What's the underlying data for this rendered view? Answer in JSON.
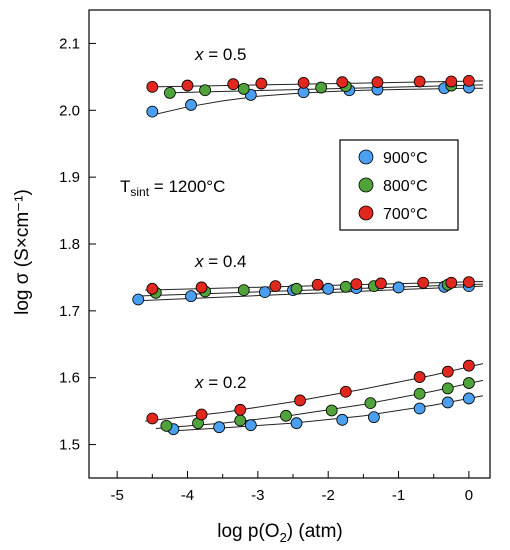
{
  "chart_data": {
    "type": "scatter",
    "xlabel_main": "log p(O",
    "xlabel_sub": "2",
    "xlabel_tail": ") (atm)",
    "ylabel": "log σ (S×cm⁻¹)",
    "xlim": [
      -5.4,
      0.3
    ],
    "ylim": [
      1.45,
      2.15
    ],
    "x_ticks": [
      -5,
      -4,
      -3,
      -2,
      -1,
      0
    ],
    "y_ticks": [
      1.5,
      1.6,
      1.7,
      1.8,
      1.9,
      2.0,
      2.1
    ],
    "x_tick_labels": [
      "-5",
      "-4",
      "-3",
      "-2",
      "-1",
      "0"
    ],
    "y_tick_labels": [
      "1.5",
      "1.6",
      "1.7",
      "1.8",
      "1.9",
      "2.0",
      "2.1"
    ],
    "legend_position": "right",
    "annotations": {
      "x05": {
        "prefix": "x",
        "rest": " = 0.5"
      },
      "x04": {
        "prefix": "x",
        "rest": " = 0.4"
      },
      "x02": {
        "prefix": "x",
        "rest": " = 0.2"
      },
      "tsint": {
        "main": "T",
        "sub": "sint",
        "rest": " = 1200°C"
      }
    },
    "series": [
      {
        "name": "900°C",
        "color": "#4a9ff0",
        "group": "x05",
        "x": [
          -4.5,
          -3.95,
          -3.1,
          -2.35,
          -1.7,
          -1.3,
          -0.35,
          -0.0
        ],
        "y": [
          1.998,
          2.008,
          2.023,
          2.027,
          2.03,
          2.031,
          2.033,
          2.034
        ]
      },
      {
        "name": "800°C",
        "color": "#4fa33a",
        "group": "x05",
        "x": [
          -4.25,
          -3.75,
          -3.2,
          -2.1,
          -1.75,
          -0.25
        ],
        "y": [
          2.026,
          2.03,
          2.032,
          2.034,
          2.036,
          2.037
        ]
      },
      {
        "name": "700°C",
        "color": "#e0281e",
        "group": "x05",
        "x": [
          -4.5,
          -4.0,
          -3.35,
          -2.95,
          -2.35,
          -1.8,
          -1.3,
          -0.7,
          -0.25,
          0.0
        ],
        "y": [
          2.035,
          2.037,
          2.039,
          2.04,
          2.041,
          2.042,
          2.042,
          2.043,
          2.043,
          2.044
        ]
      },
      {
        "name": "900°C",
        "color": "#4a9ff0",
        "group": "x04",
        "x": [
          -4.7,
          -3.95,
          -2.9,
          -2.5,
          -2.0,
          -1.6,
          -1.0,
          -0.35,
          0.0
        ],
        "y": [
          1.717,
          1.722,
          1.728,
          1.731,
          1.733,
          1.734,
          1.735,
          1.736,
          1.737
        ]
      },
      {
        "name": "800°C",
        "color": "#4fa33a",
        "group": "x04",
        "x": [
          -4.45,
          -3.75,
          -3.2,
          -2.45,
          -1.75,
          -1.35,
          -0.3
        ],
        "y": [
          1.727,
          1.729,
          1.731,
          1.733,
          1.736,
          1.737,
          1.739
        ]
      },
      {
        "name": "700°C",
        "color": "#e0281e",
        "group": "x04",
        "x": [
          -4.5,
          -3.8,
          -2.75,
          -2.15,
          -1.6,
          -1.25,
          -0.65,
          -0.25,
          0.0
        ],
        "y": [
          1.733,
          1.735,
          1.737,
          1.739,
          1.74,
          1.741,
          1.742,
          1.742,
          1.743
        ]
      },
      {
        "name": "900°C",
        "color": "#4a9ff0",
        "group": "x02",
        "x": [
          -4.2,
          -3.55,
          -3.1,
          -2.45,
          -1.8,
          -1.35,
          -0.7,
          -0.3,
          0.0
        ],
        "y": [
          1.523,
          1.526,
          1.529,
          1.532,
          1.537,
          1.541,
          1.554,
          1.563,
          1.569
        ]
      },
      {
        "name": "800°C",
        "color": "#4fa33a",
        "group": "x02",
        "x": [
          -4.3,
          -3.85,
          -3.25,
          -2.6,
          -1.95,
          -1.4,
          -0.7,
          -0.3,
          0.0
        ],
        "y": [
          1.528,
          1.532,
          1.536,
          1.543,
          1.551,
          1.562,
          1.576,
          1.584,
          1.592
        ]
      },
      {
        "name": "700°C",
        "color": "#e0281e",
        "group": "x02",
        "x": [
          -4.5,
          -3.8,
          -3.25,
          -2.4,
          -1.75,
          -0.7,
          -0.3,
          0.0
        ],
        "y": [
          1.539,
          1.545,
          1.552,
          1.566,
          1.579,
          1.601,
          1.609,
          1.618
        ]
      }
    ],
    "fit_lines": [
      {
        "x": [
          -4.5,
          -4.0,
          -3.5,
          -3.0,
          -2.5,
          -2.0,
          -1.5,
          -1.0,
          -0.5,
          0.0,
          0.2
        ],
        "y": [
          1.993,
          2.005,
          2.014,
          2.021,
          2.025,
          2.028,
          2.03,
          2.031,
          2.032,
          2.033,
          2.033
        ]
      },
      {
        "x": [
          -4.3,
          0.2
        ],
        "y": [
          2.026,
          2.038
        ]
      },
      {
        "x": [
          -4.5,
          0.2
        ],
        "y": [
          2.035,
          2.044
        ]
      },
      {
        "x": [
          -4.75,
          0.2
        ],
        "y": [
          1.715,
          1.737
        ]
      },
      {
        "x": [
          -4.75,
          0.2
        ],
        "y": [
          1.722,
          1.74
        ]
      },
      {
        "x": [
          -4.6,
          0.2
        ],
        "y": [
          1.731,
          1.744
        ]
      },
      {
        "x": [
          -4.3,
          -3.5,
          -2.5,
          -1.5,
          -0.5,
          0.2
        ],
        "y": [
          1.52,
          1.525,
          1.532,
          1.543,
          1.559,
          1.573
        ]
      },
      {
        "x": [
          -4.45,
          -3.5,
          -2.5,
          -1.5,
          -0.5,
          0.2
        ],
        "y": [
          1.524,
          1.532,
          1.544,
          1.56,
          1.58,
          1.596
        ]
      },
      {
        "x": [
          -4.6,
          -3.5,
          -2.5,
          -1.5,
          -0.5,
          0.2
        ],
        "y": [
          1.535,
          1.548,
          1.564,
          1.583,
          1.604,
          1.621
        ]
      }
    ],
    "legend": [
      {
        "name": "900°C",
        "color": "#4a9ff0"
      },
      {
        "name": "800°C",
        "color": "#4fa33a"
      },
      {
        "name": "700°C",
        "color": "#e0281e"
      }
    ]
  }
}
